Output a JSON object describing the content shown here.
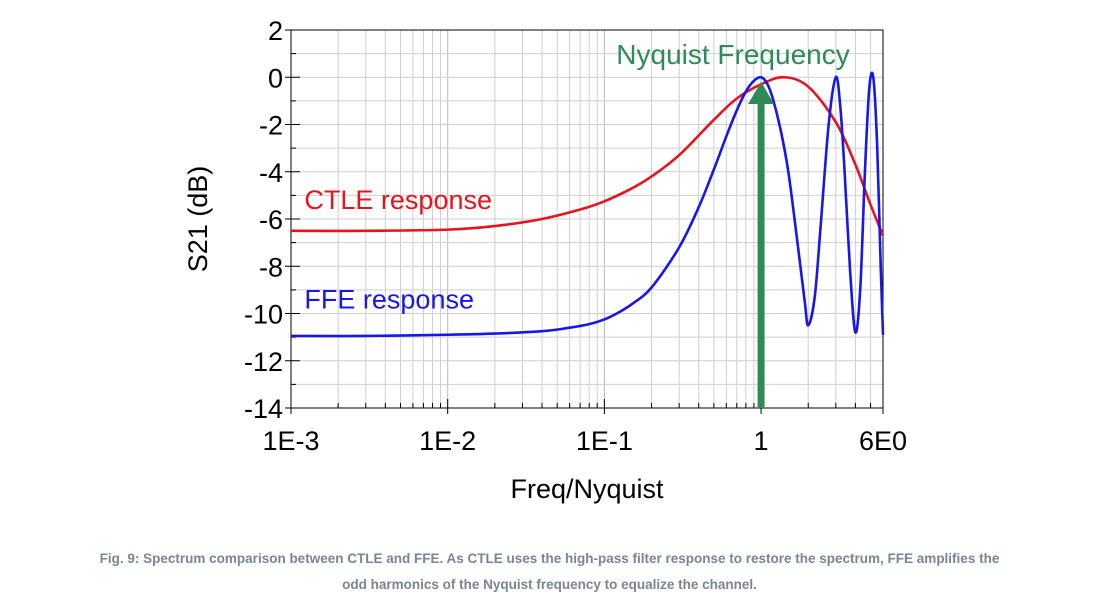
{
  "chart_data": {
    "type": "line",
    "title": "",
    "xlabel": "Freq/Nyquist",
    "ylabel": "S21 (dB)",
    "xscale": "log",
    "xlim": [
      0.001,
      6
    ],
    "ylim": [
      -14,
      2
    ],
    "grid": true,
    "x_ticks": [
      {
        "value": 0.001,
        "label": "1E-3"
      },
      {
        "value": 0.01,
        "label": "1E-2"
      },
      {
        "value": 0.1,
        "label": "1E-1"
      },
      {
        "value": 1,
        "label": "1"
      },
      {
        "value": 6,
        "label": "6E0"
      }
    ],
    "y_ticks": [
      {
        "value": 2,
        "label": "2"
      },
      {
        "value": 0,
        "label": "0"
      },
      {
        "value": -2,
        "label": "-2"
      },
      {
        "value": -4,
        "label": "-4"
      },
      {
        "value": -6,
        "label": "-6"
      },
      {
        "value": -8,
        "label": "-8"
      },
      {
        "value": -10,
        "label": "-10"
      },
      {
        "value": -12,
        "label": "-12"
      },
      {
        "value": -14,
        "label": "-14"
      }
    ],
    "series": [
      {
        "name": "CTLE response",
        "color": "#e8131c",
        "x": [
          0.001,
          0.003,
          0.01,
          0.02,
          0.04,
          0.07,
          0.1,
          0.15,
          0.2,
          0.3,
          0.5,
          0.7,
          1,
          1.4,
          2,
          3,
          4,
          5,
          6
        ],
        "y": [
          -6.5,
          -6.5,
          -6.45,
          -6.3,
          -6.0,
          -5.6,
          -5.25,
          -4.7,
          -4.2,
          -3.3,
          -1.8,
          -0.9,
          -0.3,
          0.0,
          -0.4,
          -1.9,
          -3.7,
          -5.4,
          -6.7
        ]
      },
      {
        "name": "FFE response",
        "color": "#1717ea",
        "x": [
          0.001,
          0.003,
          0.01,
          0.02,
          0.04,
          0.06,
          0.08,
          0.1,
          0.12,
          0.15,
          0.2,
          0.3,
          0.4,
          0.5,
          0.6,
          0.7,
          0.8,
          0.9,
          1.0,
          1.1,
          1.2,
          1.35,
          1.5,
          1.7,
          1.9,
          2.0,
          2.2,
          2.4,
          2.7,
          3.0,
          3.2,
          3.4,
          3.7,
          4.0,
          4.3,
          4.6,
          4.9,
          5.2,
          5.5,
          5.8,
          6.0
        ],
        "y": [
          -10.95,
          -10.95,
          -10.9,
          -10.85,
          -10.75,
          -10.6,
          -10.45,
          -10.25,
          -10.0,
          -9.6,
          -8.9,
          -7.2,
          -5.5,
          -3.9,
          -2.5,
          -1.4,
          -0.6,
          -0.15,
          0.0,
          -0.3,
          -1.0,
          -2.4,
          -4.1,
          -6.9,
          -9.5,
          -10.5,
          -9.3,
          -6.3,
          -2.0,
          0.0,
          -1.2,
          -3.8,
          -8.2,
          -10.8,
          -8.9,
          -4.0,
          -0.5,
          0.0,
          -2.8,
          -8.0,
          -10.9
        ]
      }
    ],
    "annotations": [
      {
        "text": "Nyquist Frequency",
        "type": "arrow",
        "x": 1,
        "y_from": -14,
        "y_to": -0.2,
        "color": "#2e8b57"
      },
      {
        "text": "CTLE response",
        "color": "#e8131c",
        "x": 0.0012,
        "y": -5.2
      },
      {
        "text": "FFE response",
        "color": "#1717ea",
        "x": 0.0012,
        "y": -9.4
      }
    ]
  },
  "caption": {
    "line1": "Fig. 9: Spectrum comparison between CTLE and FFE. As CTLE uses the high-pass filter response to restore the spectrum, FFE amplifies the",
    "line2": "odd harmonics of the Nyquist frequency to equalize the channel."
  }
}
